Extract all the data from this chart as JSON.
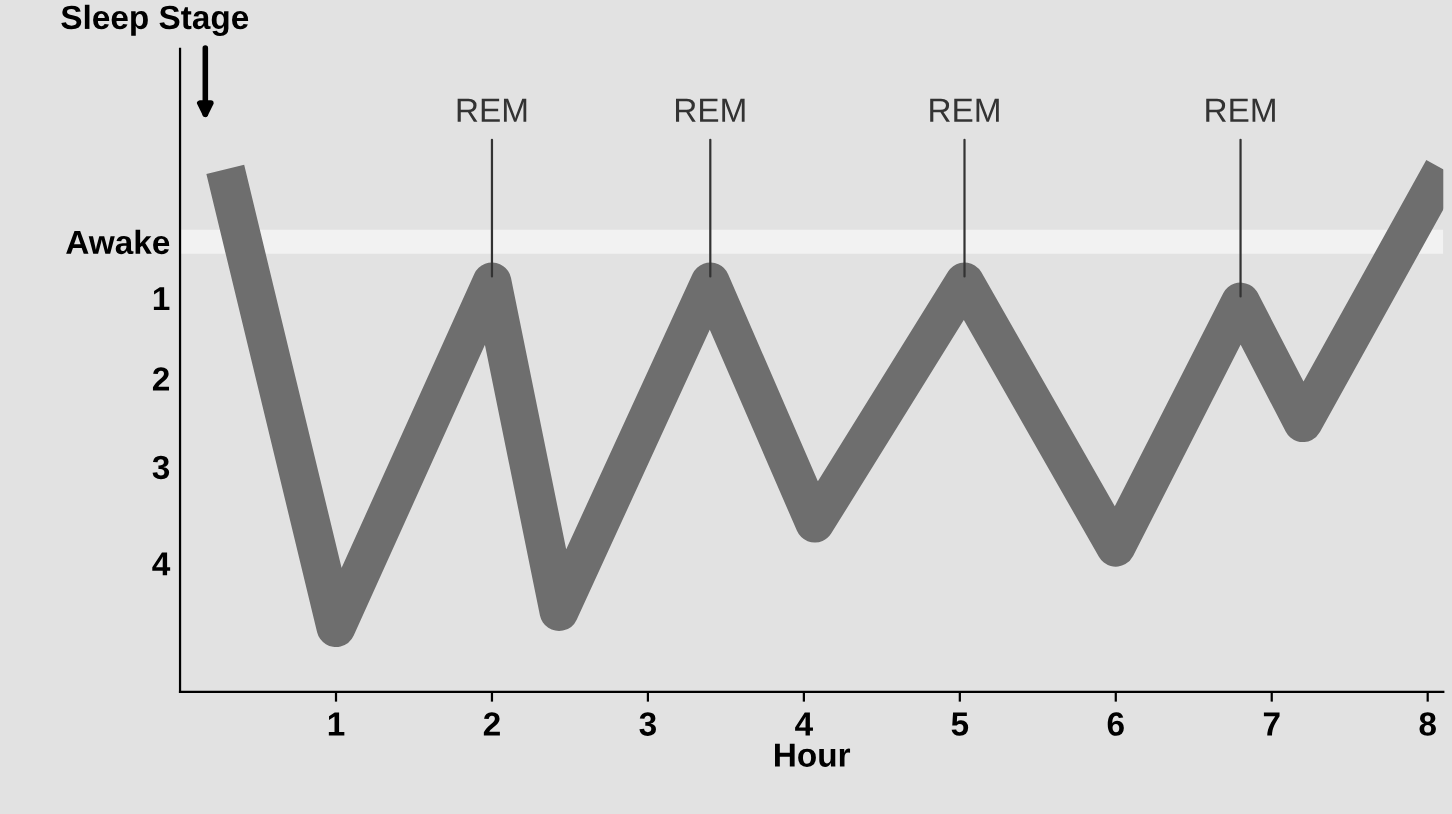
{
  "chart_data": {
    "type": "line",
    "xlabel": "Hour",
    "ylabel": "Sleep Stage",
    "series": [
      {
        "color": "#6e6e6e",
        "x": [
          0.29,
          1.0,
          2.0,
          2.43,
          3.4,
          4.07,
          5.03,
          6.0,
          6.8,
          7.2,
          8.1
        ],
        "values": [
          -0.9,
          4.8,
          0.5,
          4.6,
          0.5,
          3.5,
          0.5,
          3.8,
          0.75,
          2.25,
          -0.9
        ]
      }
    ],
    "xlim": [
      0,
      8.1
    ],
    "xticks": [
      1,
      2,
      3,
      4,
      5,
      6,
      7,
      8
    ],
    "ylim": [
      5.6,
      -2.4
    ],
    "yticks": [
      {
        "value": 0,
        "label": "Awake"
      },
      {
        "value": 0.7,
        "label": "1"
      },
      {
        "value": 1.7,
        "label": "2"
      },
      {
        "value": 2.8,
        "label": "3"
      },
      {
        "value": 4,
        "label": "4"
      }
    ],
    "bands": [
      {
        "axis": "y",
        "from": -0.15,
        "to": 0.15,
        "color": "#f2f2f2"
      }
    ],
    "annotations": [
      {
        "text": "REM",
        "x": 2.0,
        "y": 0.5
      },
      {
        "text": "REM",
        "x": 3.4,
        "y": 0.5
      },
      {
        "text": "REM",
        "x": 5.03,
        "y": 0.5
      },
      {
        "text": "REM",
        "x": 6.8,
        "y": 0.75
      }
    ],
    "grid": false,
    "legend": false
  }
}
